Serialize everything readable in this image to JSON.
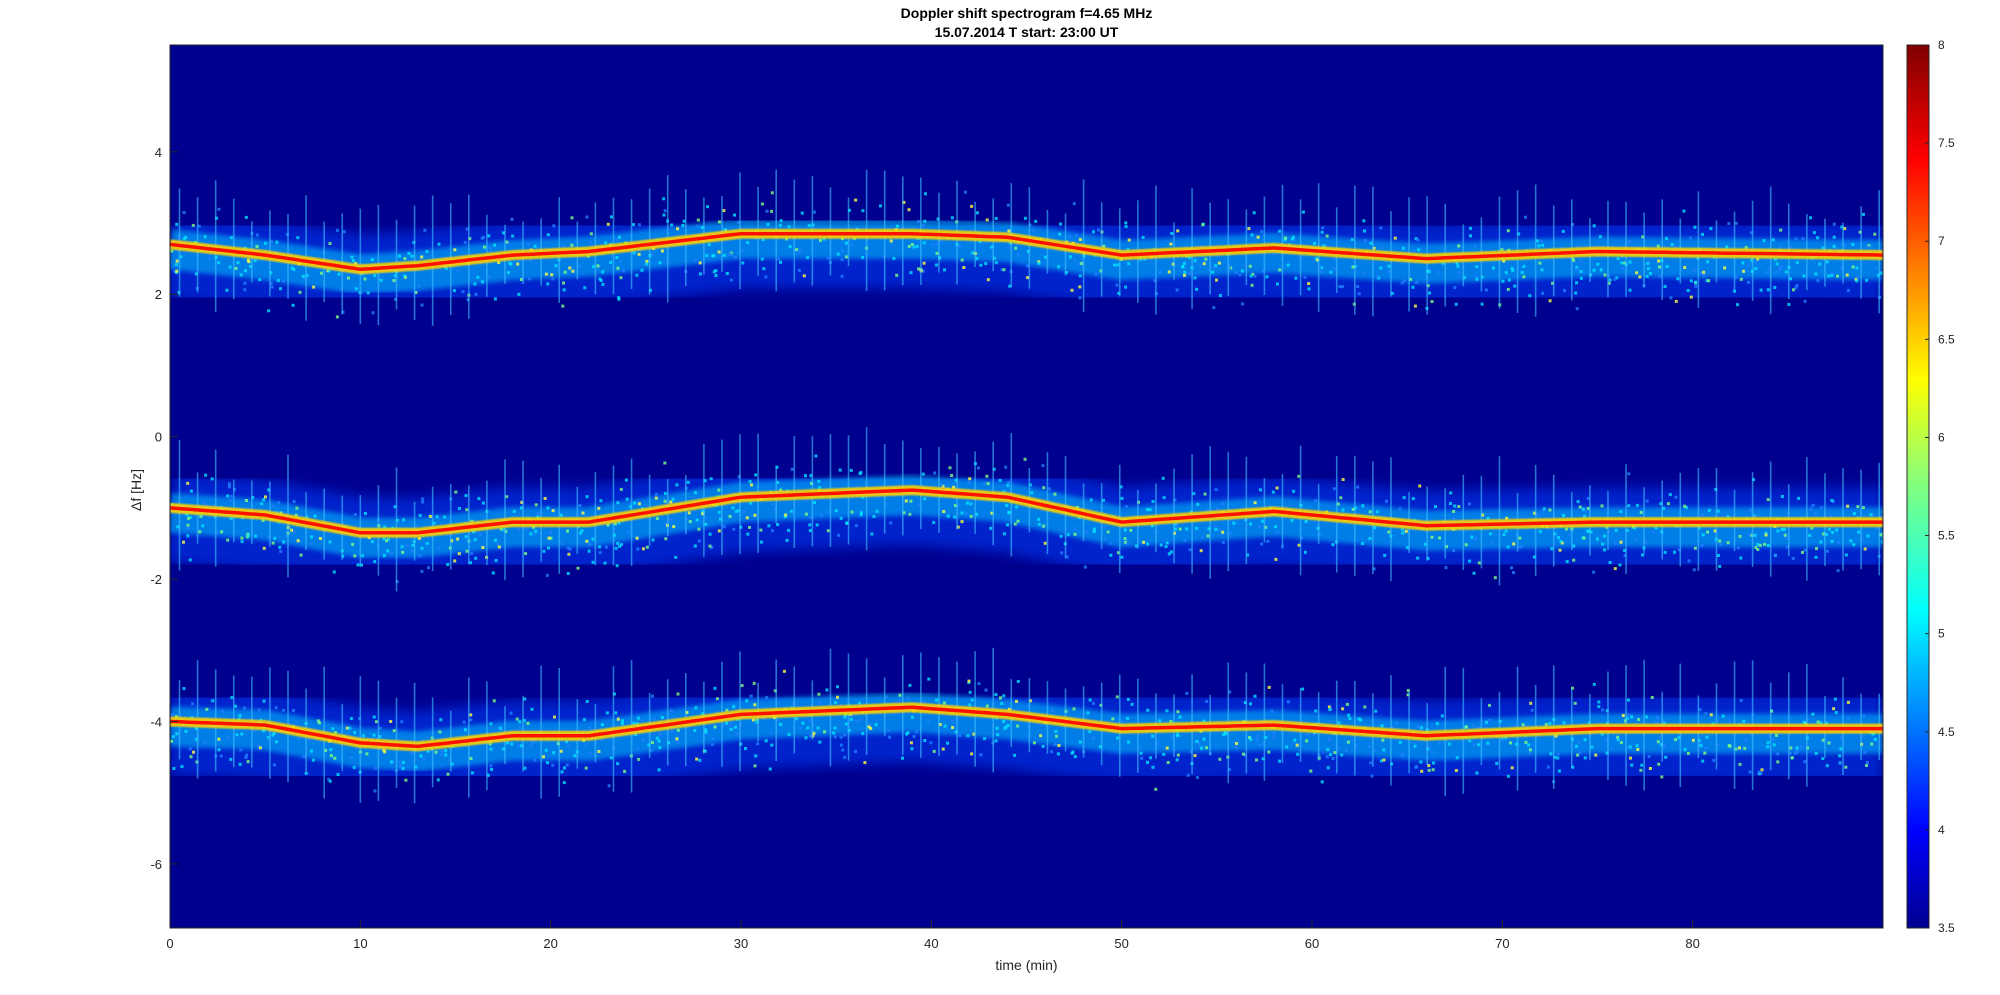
{
  "chart_data": {
    "type": "heatmap",
    "title": "Doppler shift spectrogram f=4.65 MHz",
    "subtitle": "15.07.2014   T start: 23:00 UT",
    "xlabel": "time (min)",
    "ylabel": "Δf [Hz]",
    "xlim": [
      0,
      90
    ],
    "ylim": [
      -6.9,
      5.5
    ],
    "xticks": [
      0,
      10,
      20,
      30,
      40,
      50,
      60,
      70,
      80
    ],
    "yticks": [
      4,
      2,
      0,
      -2,
      -4,
      -6
    ],
    "colorbar": {
      "ticks": [
        8,
        7.5,
        7,
        6.5,
        6,
        5.5,
        5,
        4.5,
        4,
        3.5
      ],
      "range": [
        3.5,
        8
      ],
      "colormap": "jet"
    },
    "grid": false,
    "series": [
      {
        "x": [
          0,
          5,
          10,
          13,
          18,
          22,
          30,
          39,
          44,
          50,
          58,
          66,
          75,
          90
        ],
        "y": [
          2.7,
          2.55,
          2.35,
          2.4,
          2.55,
          2.6,
          2.85,
          2.85,
          2.8,
          2.55,
          2.65,
          2.5,
          2.6,
          2.55
        ]
      },
      {
        "x": [
          0,
          5,
          10,
          13,
          18,
          22,
          30,
          39,
          44,
          50,
          58,
          66,
          75,
          90
        ],
        "y": [
          -1.0,
          -1.1,
          -1.35,
          -1.35,
          -1.2,
          -1.2,
          -0.85,
          -0.75,
          -0.85,
          -1.2,
          -1.05,
          -1.25,
          -1.2,
          -1.2
        ]
      },
      {
        "x": [
          0,
          5,
          10,
          13,
          18,
          22,
          30,
          39,
          44,
          50,
          58,
          66,
          75,
          90
        ],
        "y": [
          -4.0,
          -4.05,
          -4.3,
          -4.35,
          -4.2,
          -4.2,
          -3.9,
          -3.8,
          -3.9,
          -4.1,
          -4.05,
          -4.2,
          -4.1,
          -4.1
        ]
      }
    ],
    "colors": {
      "background": "#00008f",
      "axis_text": "#262626"
    }
  }
}
